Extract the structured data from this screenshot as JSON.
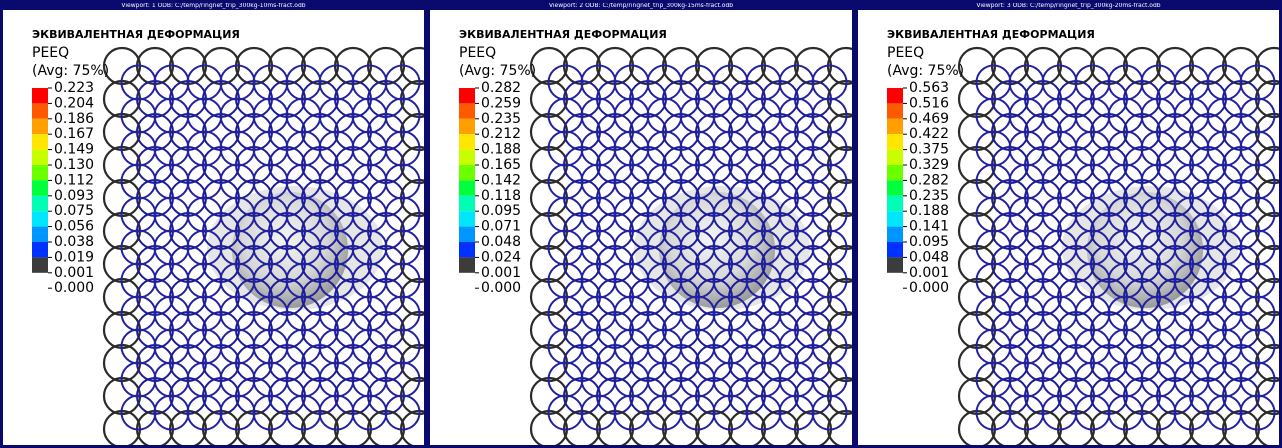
{
  "viewports": [
    {
      "title_bar": "Viewport: 1   ODB: C:/temp/ringnet_trip_300kg-10ms-fract.odb",
      "legend": {
        "heading": "ЭКВИВАЛЕНТНАЯ ДЕФОРМАЦИЯ",
        "variable": "PEEQ",
        "averaging": "(Avg: 75%)",
        "values": [
          "0.223",
          "0.204",
          "0.186",
          "0.167",
          "0.149",
          "0.130",
          "0.112",
          "0.093",
          "0.075",
          "0.056",
          "0.038",
          "0.019",
          "0.001",
          "0.000"
        ]
      }
    },
    {
      "title_bar": "Viewport: 2   ODB: C:/temp/ringnet_trip_300kg-15ms-fract.odb",
      "legend": {
        "heading": "ЭКВИВАЛЕНТНАЯ ДЕФОРМАЦИЯ",
        "variable": "PEEQ",
        "averaging": "(Avg: 75%)",
        "values": [
          "0.282",
          "0.259",
          "0.235",
          "0.212",
          "0.188",
          "0.165",
          "0.142",
          "0.118",
          "0.095",
          "0.071",
          "0.048",
          "0.024",
          "0.001",
          "0.000"
        ]
      }
    },
    {
      "title_bar": "Viewport: 3   ODB: C:/temp/ringnet_trip_300kg-20ms-fract.odb",
      "legend": {
        "heading": "ЭКВИВАЛЕНТНАЯ ДЕФОРМАЦИЯ",
        "variable": "PEEQ",
        "averaging": "(Avg: 75%)",
        "values": [
          "0.563",
          "0.516",
          "0.469",
          "0.422",
          "0.375",
          "0.329",
          "0.282",
          "0.235",
          "0.188",
          "0.141",
          "0.095",
          "0.048",
          "0.001",
          "0.000"
        ]
      }
    }
  ]
}
